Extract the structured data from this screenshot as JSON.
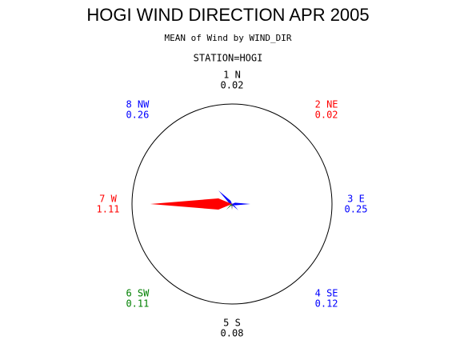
{
  "chart_data": {
    "type": "star",
    "title": "HOGI WIND DIRECTION APR 2005",
    "subtitle": "MEAN of Wind by WIND_DIR",
    "station_label": "STATION=HOGI",
    "categories": [
      "1 N",
      "2 NE",
      "3 E",
      "4 SE",
      "5 S",
      "6 SW",
      "7 W",
      "8 NW"
    ],
    "values": [
      0.02,
      0.02,
      0.25,
      0.12,
      0.08,
      0.11,
      1.11,
      0.26
    ],
    "colors": [
      "#000000",
      "#ff0000",
      "#0000ff",
      "#0000ff",
      "#000000",
      "#008000",
      "#ff0000",
      "#0000ff"
    ]
  }
}
